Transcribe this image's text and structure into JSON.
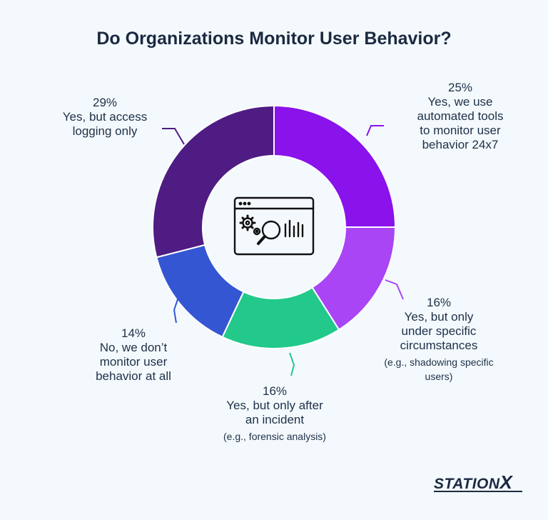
{
  "chart_data": {
    "type": "pie",
    "title": "Do Organizations Monitor User Behavior?",
    "slices": [
      {
        "name": "automated",
        "value": 25,
        "pct_label": "25%",
        "label": "Yes, we use\nautomated tools\nto monitor user\nbehavior 24x7",
        "note": "",
        "color": "#8a12ea"
      },
      {
        "name": "specific",
        "value": 16,
        "pct_label": "16%",
        "label": "Yes, but only\nunder specific\ncircumstances",
        "note": "(e.g., shadowing specific\nusers)",
        "color": "#a945f5"
      },
      {
        "name": "incident",
        "value": 16,
        "pct_label": "16%",
        "label": "Yes, but only after\nan incident",
        "note": "(e.g., forensic analysis)",
        "color": "#22c98a"
      },
      {
        "name": "none",
        "value": 14,
        "pct_label": "14%",
        "label": "No, we don’t\nmonitor user\nbehavior at all",
        "note": "",
        "color": "#3556d2"
      },
      {
        "name": "logging",
        "value": 29,
        "pct_label": "29%",
        "label": "Yes, but access\nlogging only",
        "note": "",
        "color": "#4f1c84"
      }
    ]
  },
  "icons": {
    "center": "monitoring-dashboard-icon"
  },
  "brand": {
    "name": "STATION",
    "mark": "X"
  }
}
